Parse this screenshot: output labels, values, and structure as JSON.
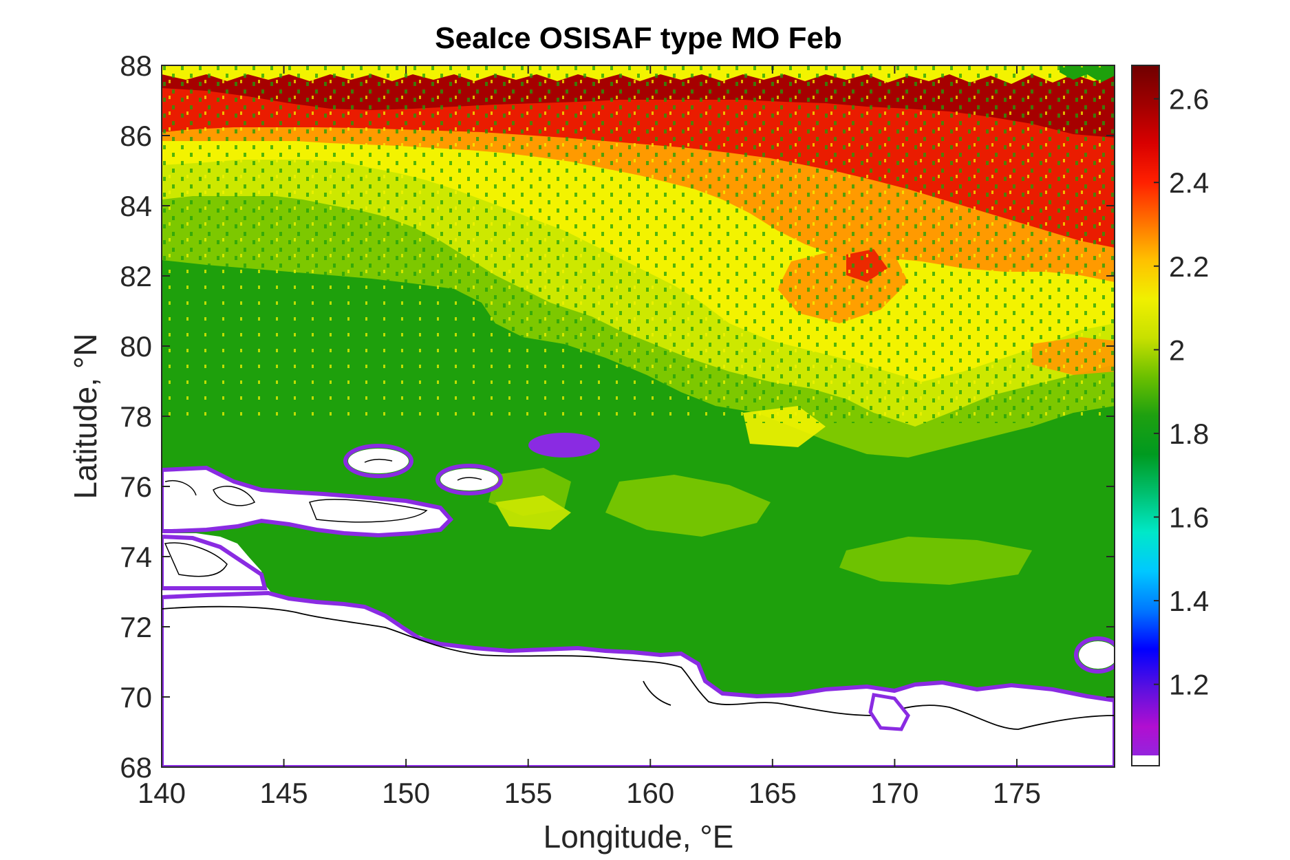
{
  "title": "SeaIce OSISAF type MO Feb",
  "map": {
    "type": "heatmap",
    "xlabel": "Longitude, °E",
    "ylabel": "Latitude, °N",
    "xlim": [
      140,
      179
    ],
    "ylim": [
      68,
      88
    ],
    "xticks": [
      140,
      145,
      150,
      155,
      160,
      165,
      170,
      175
    ],
    "yticks": [
      68,
      70,
      72,
      74,
      76,
      78,
      80,
      82,
      84,
      86,
      88
    ],
    "colorbar": {
      "range": [
        1.03,
        2.68
      ],
      "ticks": [
        1.2,
        1.4,
        1.6,
        1.8,
        2,
        2.2,
        2.4,
        2.6
      ],
      "tick_labels": [
        "1.2",
        "1.4",
        "1.6",
        "1.8",
        "2",
        "2.2",
        "2.4",
        "2.6"
      ],
      "colors": [
        "#8a2be2",
        "#b10fd0",
        "#5a10e0",
        "#0000ff",
        "#0078ff",
        "#00c8ff",
        "#00e8c8",
        "#00c070",
        "#009a20",
        "#1ea010",
        "#6cc000",
        "#c8e000",
        "#f0f000",
        "#ffc000",
        "#ff7000",
        "#ff2000",
        "#d80000",
        "#a00000",
        "#700000"
      ]
    },
    "colors": {
      "first_year_ice": "#1ea00c",
      "light_green": "#7dc800",
      "yellow_green": "#cde800",
      "yellow": "#f3f300",
      "orange": "#ff9a00",
      "red": "#ea1c00",
      "dark_red": "#a60000",
      "ice_edge": "#8a2be2",
      "land": "#ffffff",
      "coastline": "#000000"
    }
  }
}
